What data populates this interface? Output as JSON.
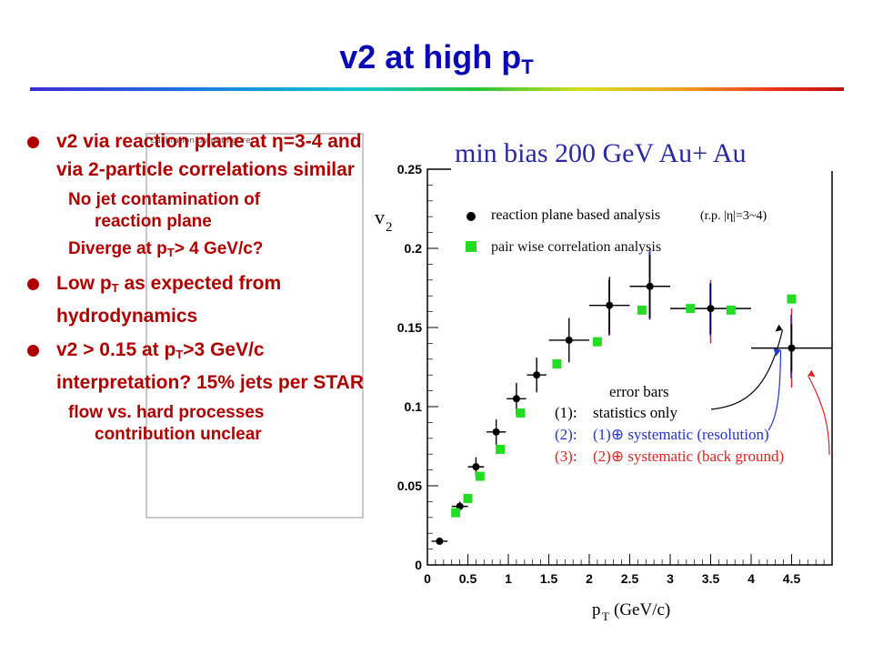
{
  "slide": {
    "title_main": "v2 at high p",
    "title_sub": "T",
    "tiny_label": "Calibration output figure"
  },
  "bullets": [
    {
      "text": "v2 via reaction plane at η=3-4 and via 2-particle correlations similar"
    },
    {
      "text": "Low p",
      "sub": "T",
      "after": " as expected from hydrodynamics"
    },
    {
      "pre": "v2 > 0.15 at p",
      "sub": "T",
      "after": ">3 GeV/c interpretation? 15% jets per STAR"
    }
  ],
  "sub_bullets": {
    "jet_line1": "No jet contamination of",
    "jet_line2": "reaction plane",
    "diverge_pre": "Diverge at p",
    "diverge_sub": "T",
    "diverge_after": "> 4 GeV/c?",
    "flow_line1": "flow vs. hard processes",
    "flow_line2": "contribution unclear"
  },
  "colors": {
    "title": "#0a0ab4",
    "bullet_text": "#b00000",
    "series_rp": "#000000",
    "series_pair": "#22dd22",
    "error_stat": "#000000",
    "error_sys_resolution": "#2233cc",
    "error_sys_background": "#dd2222",
    "overlay_label": "#2a2aa0"
  },
  "chart_data": {
    "type": "scatter",
    "title": "min bias 200 GeV Au+ Au",
    "xlabel": "p",
    "xlabel_sub": "T",
    "xlabel_unit": "(GeV/c)",
    "ylabel": "v",
    "ylabel_sub": "2",
    "xlim": [
      0,
      5
    ],
    "ylim": [
      0,
      0.25
    ],
    "x_ticks": [
      "0",
      "0.5",
      "1",
      "1.5",
      "2",
      "2.5",
      "3",
      "3.5",
      "4",
      "4.5"
    ],
    "x_tick_values": [
      0,
      0.5,
      1,
      1.5,
      2,
      2.5,
      3,
      3.5,
      4,
      4.5
    ],
    "y_ticks": [
      "0",
      "0.05",
      "0.1",
      "0.15",
      "0.2",
      "0.25"
    ],
    "y_tick_values": [
      0,
      0.05,
      0.1,
      0.15,
      0.2,
      0.25
    ],
    "legend": {
      "rp_label": "reaction plane based analysis",
      "rp_note": "(r.p. |η|=3~4)",
      "pair_label": "pair wise correlation analysis",
      "title": "error bars",
      "e1_tag": "(1):",
      "e1": "statistics only",
      "e2_tag": "(2):",
      "e2": "(1)⊕ systematic (resolution)",
      "e3_tag": "(3):",
      "e3": "(2)⊕ systematic (back ground)"
    },
    "series": [
      {
        "name": "reaction plane based analysis",
        "marker": "circle",
        "points": [
          {
            "x": 0.15,
            "y": 0.015,
            "xerr": 0.1,
            "yerr": 0.001
          },
          {
            "x": 0.4,
            "y": 0.037,
            "xerr": 0.1,
            "yerr": 0.003
          },
          {
            "x": 0.6,
            "y": 0.062,
            "xerr": 0.1,
            "yerr": 0.006
          },
          {
            "x": 0.85,
            "y": 0.084,
            "xerr": 0.12,
            "yerr": 0.008
          },
          {
            "x": 1.1,
            "y": 0.105,
            "xerr": 0.12,
            "yerr": 0.01
          },
          {
            "x": 1.35,
            "y": 0.12,
            "xerr": 0.12,
            "yerr": 0.011
          },
          {
            "x": 1.75,
            "y": 0.142,
            "xerr": 0.25,
            "yerr": 0.014
          },
          {
            "x": 2.25,
            "y": 0.164,
            "xerr": 0.25,
            "yerr": 0.018
          },
          {
            "x": 2.75,
            "y": 0.176,
            "xerr": 0.25,
            "yerr": 0.02
          },
          {
            "x": 3.5,
            "y": 0.162,
            "xerr": 0.5,
            "yerr": 0.016
          },
          {
            "x": 4.5,
            "y": 0.137,
            "xerr": 0.5,
            "yerr": 0.015
          }
        ]
      },
      {
        "name": "pair wise correlation analysis",
        "marker": "square",
        "points": [
          {
            "x": 0.35,
            "y": 0.033
          },
          {
            "x": 0.5,
            "y": 0.042
          },
          {
            "x": 0.65,
            "y": 0.056
          },
          {
            "x": 0.9,
            "y": 0.073
          },
          {
            "x": 1.15,
            "y": 0.096
          },
          {
            "x": 1.6,
            "y": 0.127
          },
          {
            "x": 2.1,
            "y": 0.141
          },
          {
            "x": 2.65,
            "y": 0.161
          },
          {
            "x": 3.25,
            "y": 0.162
          },
          {
            "x": 3.75,
            "y": 0.161
          },
          {
            "x": 4.5,
            "y": 0.168
          }
        ]
      }
    ],
    "systematic_bars": [
      {
        "x": 2.25,
        "resolution": [
          0.145,
          0.18
        ],
        "background": [
          0.145,
          0.18
        ]
      },
      {
        "x": 2.75,
        "resolution": [
          0.155,
          0.198
        ],
        "background": [
          0.155,
          0.2
        ]
      },
      {
        "x": 3.5,
        "resolution": [
          0.145,
          0.178
        ],
        "background": [
          0.14,
          0.18
        ]
      },
      {
        "x": 4.5,
        "resolution": [
          0.118,
          0.158
        ],
        "background": [
          0.112,
          0.162
        ]
      }
    ]
  }
}
